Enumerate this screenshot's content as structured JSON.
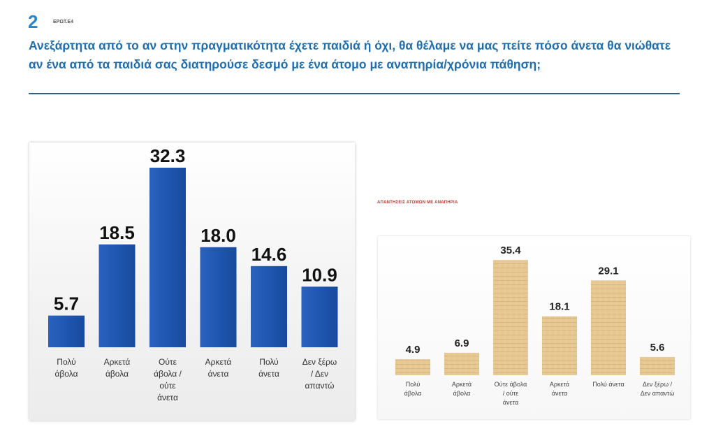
{
  "header": {
    "question_number": "2",
    "question_code": "ΕΡΩΤ.Ε4",
    "question_text": "Ανεξάρτητα από το αν στην πραγματικότητα έχετε παιδιά ή όχι, θα θέλαμε να μας πείτε πόσο άνετα θα νιώθατε αν ένα από τα παιδιά σας διατηρούσε δεσμό με ένα άτομο με αναπηρία/χρόνια πάθηση;"
  },
  "colors": {
    "accent": "#1f6fb0",
    "bar_blue": "#1f56b0",
    "bar_tan": "#e6c58f",
    "subtitle_red": "#c0392b"
  },
  "chart_data": [
    {
      "type": "bar",
      "title": "",
      "categories": [
        [
          "Πολύ",
          "άβολα"
        ],
        [
          "Αρκετά",
          "άβολα"
        ],
        [
          "Ούτε",
          "άβολα /",
          "ούτε",
          "άνετα"
        ],
        [
          "Αρκετά",
          "άνετα"
        ],
        [
          "Πολύ",
          "άνετα"
        ],
        [
          "Δεν ξέρω",
          "/ Δεν",
          "απαντώ"
        ]
      ],
      "values": [
        5.7,
        18.5,
        32.3,
        18.0,
        14.6,
        10.9
      ],
      "value_labels": [
        "5.7",
        "18.5",
        "32.3",
        "18.0",
        "14.6",
        "10.9"
      ],
      "ylim": [
        0,
        35
      ],
      "grid": false,
      "legend": "none"
    },
    {
      "type": "bar",
      "title": "ΑΠΑΝΤΗΣΕΙΣ ΑΤΟΜΩΝ ΜΕ ΑΝΑΠΗΡΙΑ",
      "categories": [
        [
          "Πολύ",
          "άβολα"
        ],
        [
          "Αρκετά",
          "άβολα"
        ],
        [
          "Ούτε άβολα",
          "/ ούτε",
          "άνετα"
        ],
        [
          "Αρκετά",
          "άνετα"
        ],
        [
          "Πολύ άνετα"
        ],
        [
          "Δεν ξέρω /",
          "Δεν απαντώ"
        ]
      ],
      "values": [
        4.9,
        6.9,
        35.4,
        18.1,
        29.1,
        5.6
      ],
      "value_labels": [
        "4.9",
        "6.9",
        "35.4",
        "18.1",
        "29.1",
        "5.6"
      ],
      "ylim": [
        0,
        38
      ],
      "grid": false,
      "legend": "none"
    }
  ]
}
